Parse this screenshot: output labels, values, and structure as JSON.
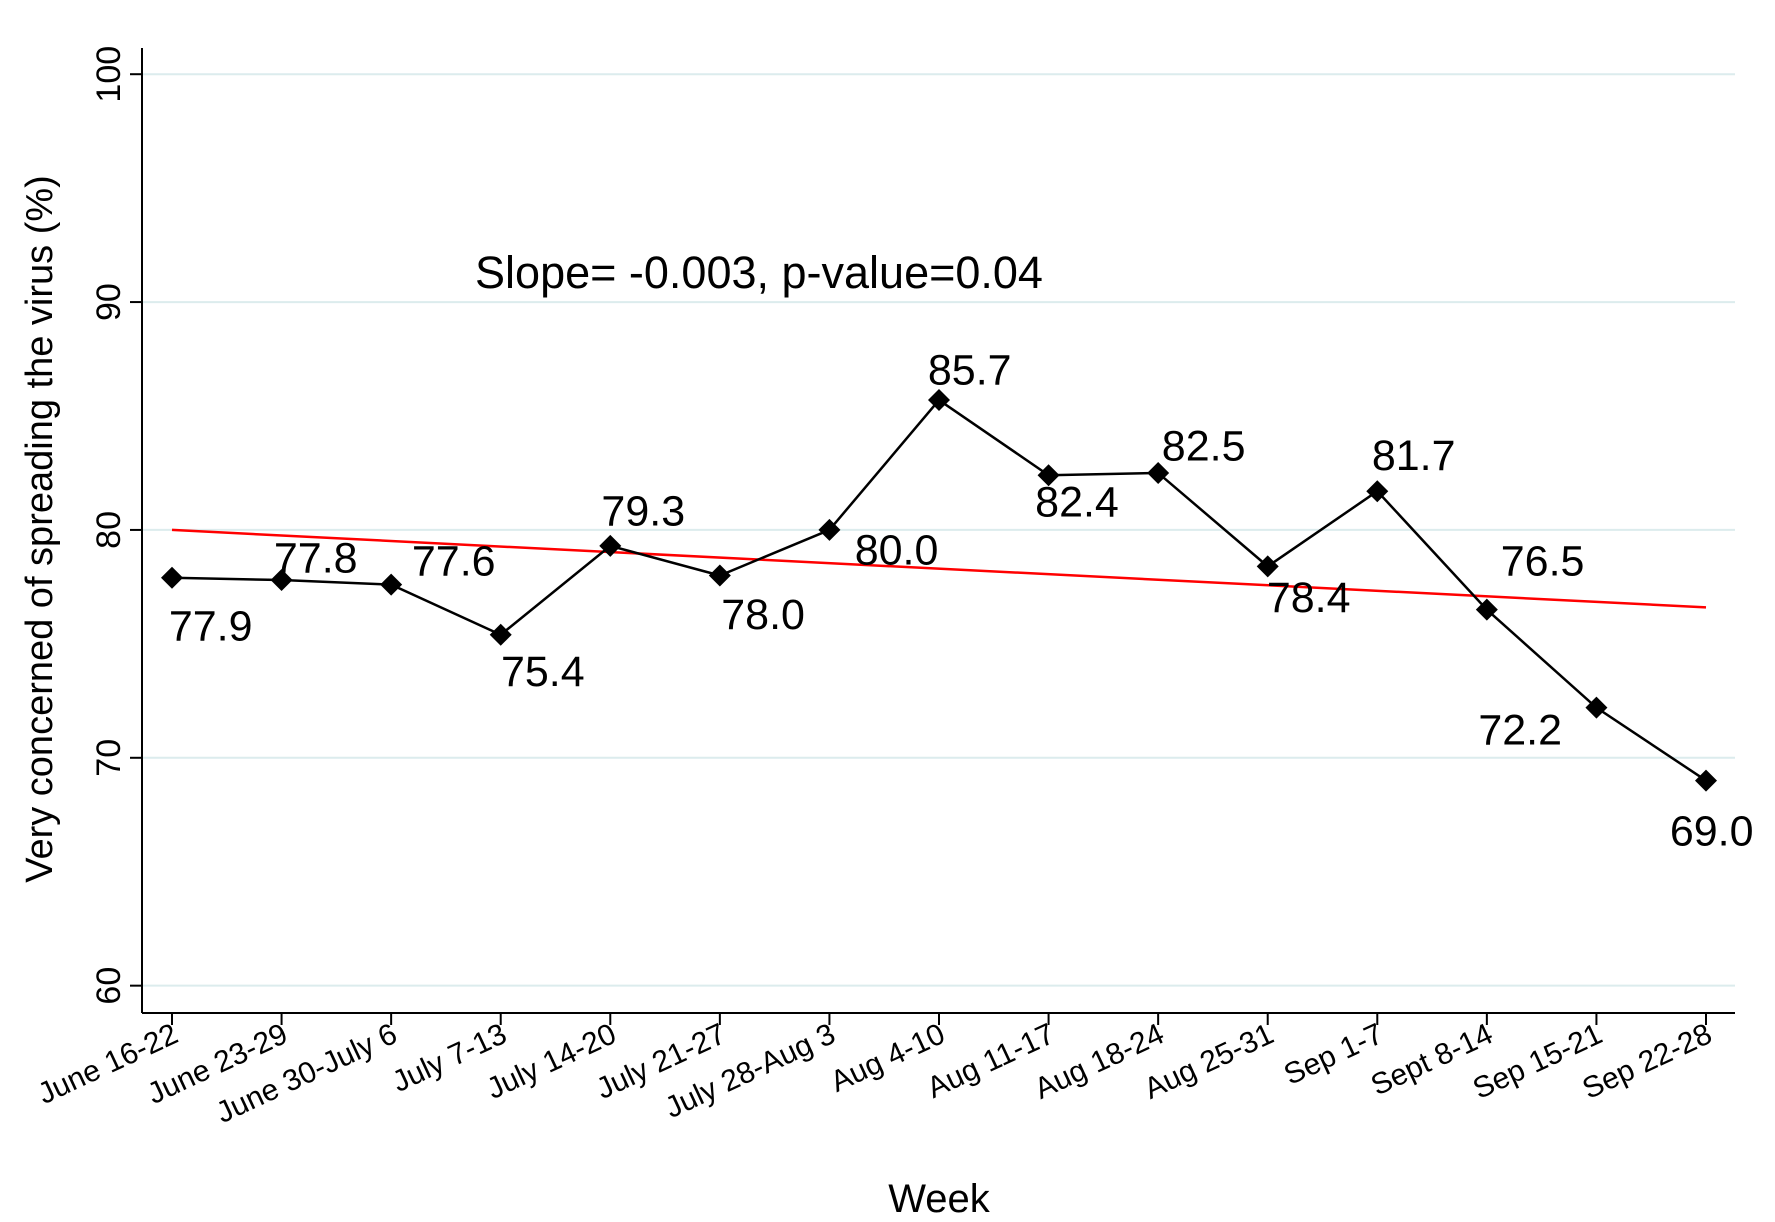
{
  "chart_data": {
    "type": "line",
    "annotation": "Slope= -0.003, p-value=0.04",
    "x_label": "Week",
    "y_label": "Very concerned of spreading the virus (%)",
    "categories": [
      "June 16-22",
      "June 23-29",
      "June 30-July 6",
      "July 7-13",
      "July 14-20",
      "July 21-27",
      "July 28-Aug 3",
      "Aug 4-10",
      "Aug 11-17",
      "Aug 18-24",
      "Aug 25-31",
      "Sep 1-7",
      "Sept 8-14",
      "Sep 15-21",
      "Sep 22-28"
    ],
    "series": [
      {
        "color": "#000000",
        "values": [
          77.9,
          77.8,
          77.6,
          75.4,
          79.3,
          78.0,
          80.0,
          85.7,
          82.4,
          82.5,
          78.4,
          81.7,
          76.5,
          72.2,
          69.0
        ],
        "value_labels": [
          "77.9",
          "77.8",
          "77.6",
          "75.4",
          "79.3",
          "78.0",
          "80.0",
          "85.7",
          "82.4",
          "82.5",
          "78.4",
          "81.7",
          "76.5",
          "72.2",
          "69.0"
        ]
      }
    ],
    "trend_line": {
      "color": "#ff0000",
      "start": 80.0,
      "end": 76.6
    },
    "ylim": [
      58.8,
      101.15
    ],
    "yticks": [
      60,
      70,
      80,
      90,
      100
    ],
    "grid": true,
    "grid_color": "#dceced"
  }
}
